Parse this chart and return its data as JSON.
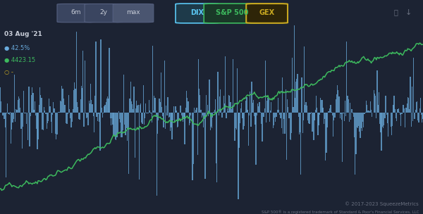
{
  "background_color": "#1c2333",
  "title_date": "03 Aug '21",
  "dix_value": "42.5%",
  "sp500_value": "4423.15",
  "gex_value": "-",
  "dix_color": "#6aacde",
  "sp500_color": "#3dba5e",
  "gex_color": "#c8a820",
  "text_color": "#c8cdd8",
  "dim_text_color": "#6a7080",
  "footer_text": "© 2017-2023 SqueezeMetrics",
  "footer_text2": "S&P 500® is a registered trademark of Standard & Poor's Financial Services, LLC",
  "button_labels": [
    "6m",
    "2y",
    "max"
  ],
  "legend_labels": [
    "DIX",
    "S&P 500",
    "GEX"
  ],
  "watermark_text": "squeezemetrics",
  "n_points": 500
}
